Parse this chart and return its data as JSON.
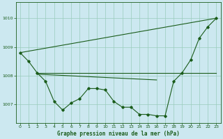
{
  "bg_color": "#cce8f0",
  "grid_color": "#99ccbb",
  "line_color": "#1a5c1a",
  "text_color": "#1a5c1a",
  "title": "Graphe pression niveau de la mer (hPa)",
  "xlim": [
    -0.5,
    23.5
  ],
  "ylim": [
    1006.35,
    1010.55
  ],
  "yticks": [
    1007,
    1008,
    1009,
    1010
  ],
  "xticks": [
    0,
    1,
    2,
    3,
    4,
    5,
    6,
    7,
    8,
    9,
    10,
    11,
    12,
    13,
    14,
    15,
    16,
    17,
    18,
    19,
    20,
    21,
    22,
    23
  ],
  "main_series_x": [
    0,
    1,
    2,
    3,
    4,
    5,
    6,
    7,
    8,
    9,
    10,
    11,
    12,
    13,
    14,
    15,
    16,
    17,
    18,
    19,
    20,
    21,
    22,
    23
  ],
  "main_series_y": [
    1008.8,
    1008.5,
    1008.1,
    1007.8,
    1007.1,
    1006.8,
    1007.05,
    1007.2,
    1007.55,
    1007.55,
    1007.5,
    1007.1,
    1006.9,
    1006.9,
    1006.65,
    1006.65,
    1006.6,
    1006.6,
    1007.8,
    1008.1,
    1008.55,
    1009.3,
    1009.7,
    1010.0
  ],
  "diag_line_x": [
    0,
    23
  ],
  "diag_line_y": [
    1008.8,
    1010.0
  ],
  "horiz_line_x": [
    2,
    23
  ],
  "horiz_line_y": [
    1008.1,
    1008.1
  ],
  "flat_line2_x": [
    2,
    16
  ],
  "flat_line2_y": [
    1008.05,
    1007.85
  ]
}
